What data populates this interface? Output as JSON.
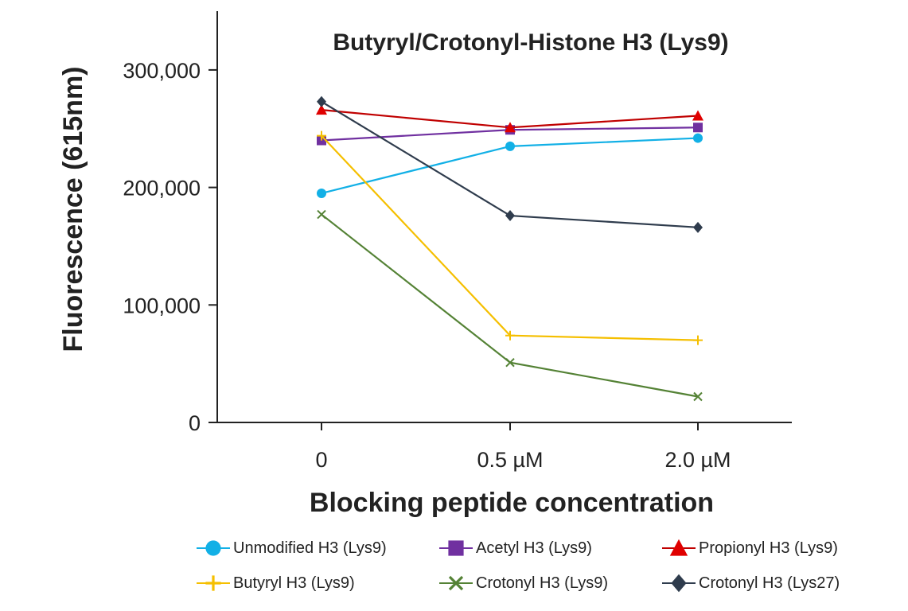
{
  "chart_data": {
    "type": "line",
    "title": "Butyryl/Crotonyl-Histone H3 (Lys9)",
    "xlabel": "Blocking peptide concentration",
    "ylabel": "Fluorescence (615nm)",
    "categories": [
      "0",
      "0.5 µM",
      "2.0 µM"
    ],
    "ylim": [
      0,
      350000
    ],
    "yticks": [
      0,
      100000,
      200000,
      300000
    ],
    "ytick_labels": [
      "0",
      "100,000",
      "200,000",
      "300,000"
    ],
    "grid": false,
    "legend_position": "bottom",
    "series": [
      {
        "name": "Unmodified H3 (Lys9)",
        "color": "#12b0e6",
        "marker": "circle",
        "values": [
          195000,
          235000,
          242000
        ]
      },
      {
        "name": "Acetyl H3 (Lys9)",
        "color": "#7030a0",
        "marker": "square",
        "values": [
          240000,
          249000,
          251000
        ]
      },
      {
        "name": "Propionyl H3 (Lys9)",
        "color": "#c00000",
        "marker_color": "#e00000",
        "marker": "triangle",
        "values": [
          266000,
          251000,
          261000
        ]
      },
      {
        "name": "Butyryl H3 (Lys9)",
        "color": "#f5bf00",
        "marker": "plus",
        "values": [
          244000,
          74000,
          70000
        ]
      },
      {
        "name": "Crotonyl H3 (Lys9)",
        "color": "#548235",
        "marker": "x",
        "values": [
          177000,
          51000,
          22000
        ]
      },
      {
        "name": "Crotonyl H3 (Lys27)",
        "color": "#2f3c4d",
        "marker": "diamond",
        "values": [
          273000,
          176000,
          166000
        ]
      }
    ]
  }
}
